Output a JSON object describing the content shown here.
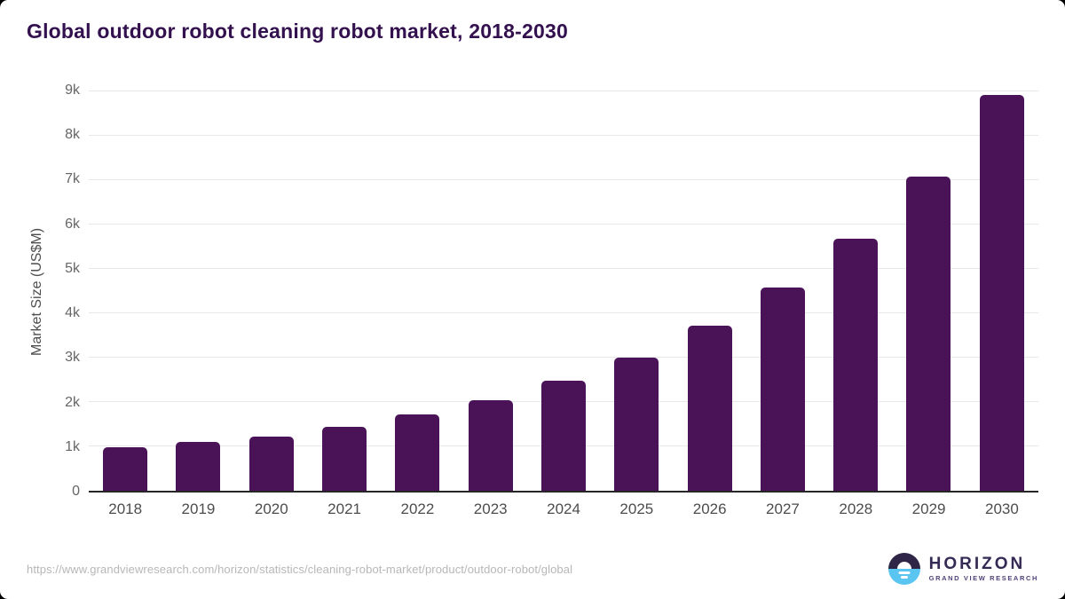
{
  "page": {
    "background_color": "#000000",
    "card_background_color": "#ffffff"
  },
  "header": {
    "title": "Global outdoor robot cleaning robot market, 2018-2030"
  },
  "chart_data": {
    "type": "bar",
    "title": "Global outdoor robot cleaning robot market, 2018-2030",
    "categories": [
      "2018",
      "2019",
      "2020",
      "2021",
      "2022",
      "2023",
      "2024",
      "2025",
      "2026",
      "2027",
      "2028",
      "2029",
      "2030"
    ],
    "values": [
      980,
      1110,
      1220,
      1450,
      1720,
      2050,
      2480,
      3010,
      3730,
      4590,
      5680,
      7090,
      8920
    ],
    "unit": "US$M",
    "xlabel": "",
    "ylabel": "Market Size (US$M)",
    "ylim": [
      0,
      9000
    ],
    "ytick_step": 1000,
    "ytick_labels": [
      "0",
      "1k",
      "2k",
      "3k",
      "4k",
      "5k",
      "6k",
      "7k",
      "8k",
      "9k"
    ],
    "grid": "horizontal-only",
    "legend": "none",
    "bar_color": "#4a1257"
  },
  "colors": {
    "title_text": "#33104e",
    "bar": "#4a1257",
    "gridline": "#e8e8e8",
    "axis_line": "#262626",
    "tick_text": "#666666",
    "url_text": "#b7b7b7",
    "logo_dark": "#2e2547",
    "logo_blue": "#5bc5f2"
  },
  "footer": {
    "source_url": "https://www.grandviewresearch.com/horizon/statistics/cleaning-robot-market/product/outdoor-robot/global",
    "logo": {
      "name": "HORIZON",
      "subtitle": "GRAND VIEW RESEARCH"
    }
  }
}
